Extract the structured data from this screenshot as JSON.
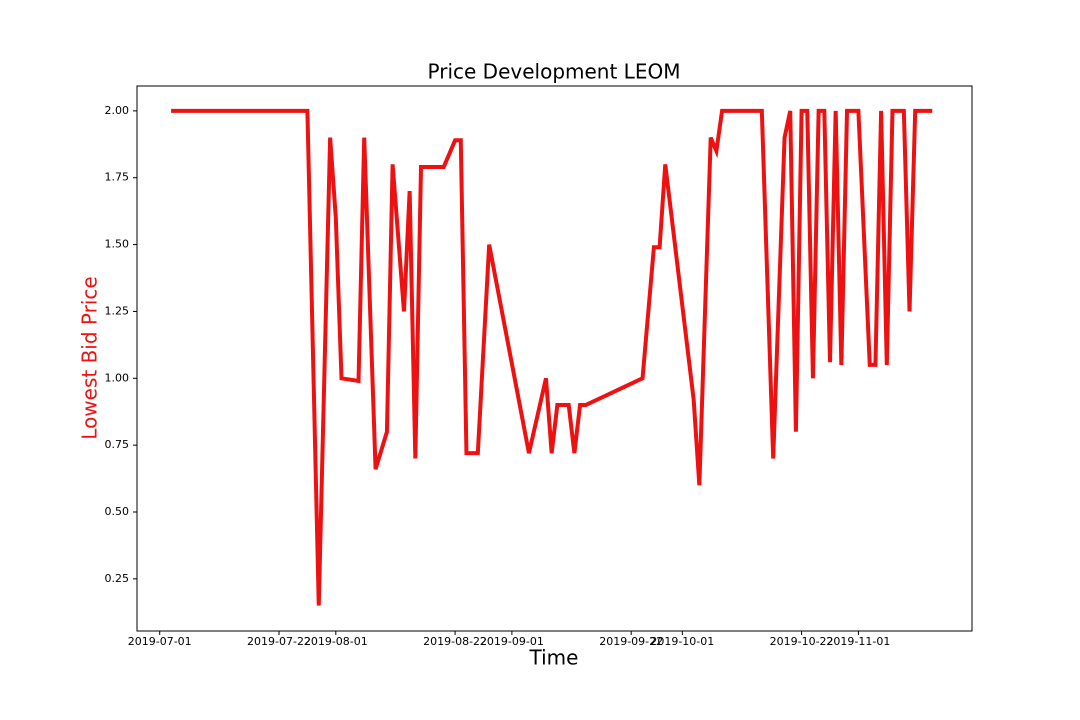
{
  "chart_data": {
    "type": "line",
    "title": "Price Development LEOM",
    "x_label": "Time",
    "y_label": "Lowest Bid Price",
    "x": [
      "2019-07-03",
      "2019-07-27",
      "2019-07-29",
      "2019-07-31",
      "2019-08-01",
      "2019-08-02",
      "2019-08-05",
      "2019-08-06",
      "2019-08-08",
      "2019-08-10",
      "2019-08-11",
      "2019-08-13",
      "2019-08-14",
      "2019-08-15",
      "2019-08-16",
      "2019-08-20",
      "2019-08-22",
      "2019-08-23",
      "2019-08-24",
      "2019-08-26",
      "2019-08-28",
      "2019-09-04",
      "2019-09-07",
      "2019-09-08",
      "2019-09-09",
      "2019-09-11",
      "2019-09-12",
      "2019-09-13",
      "2019-09-14",
      "2019-09-24",
      "2019-09-26",
      "2019-09-27",
      "2019-09-28",
      "2019-10-03",
      "2019-10-04",
      "2019-10-06",
      "2019-10-07",
      "2019-10-08",
      "2019-10-15",
      "2019-10-17",
      "2019-10-19",
      "2019-10-20",
      "2019-10-21",
      "2019-10-22",
      "2019-10-23",
      "2019-10-24",
      "2019-10-25",
      "2019-10-26",
      "2019-10-27",
      "2019-10-28",
      "2019-10-29",
      "2019-10-30",
      "2019-11-01",
      "2019-11-03",
      "2019-11-04",
      "2019-11-05",
      "2019-11-06",
      "2019-11-07",
      "2019-11-09",
      "2019-11-10",
      "2019-11-11",
      "2019-11-14"
    ],
    "series": [
      {
        "name": "Lowest Bid Price",
        "color": "#ee1111",
        "values": [
          2.0,
          2.0,
          0.15,
          1.9,
          1.6,
          1.0,
          0.99,
          1.9,
          0.66,
          0.8,
          1.8,
          1.25,
          1.7,
          0.7,
          1.79,
          1.79,
          1.89,
          1.89,
          0.72,
          0.72,
          1.5,
          0.72,
          1.0,
          0.72,
          0.9,
          0.9,
          0.72,
          0.9,
          0.9,
          1.0,
          1.49,
          1.49,
          1.8,
          0.92,
          0.6,
          1.9,
          1.85,
          2.0,
          2.0,
          0.7,
          1.9,
          2.0,
          0.8,
          2.0,
          2.0,
          1.0,
          2.0,
          2.0,
          1.06,
          2.0,
          1.05,
          2.0,
          2.0,
          1.05,
          1.05,
          2.0,
          1.05,
          2.0,
          2.0,
          1.25,
          2.0,
          2.0
        ]
      }
    ],
    "xlim": [
      "2019-06-27",
      "2019-11-21"
    ],
    "xticks": [
      "2019-07-01",
      "2019-07-22",
      "2019-08-01",
      "2019-08-22",
      "2019-09-01",
      "2019-09-22",
      "2019-10-01",
      "2019-10-22",
      "2019-11-01"
    ],
    "ylim": [
      0.055,
      2.093
    ],
    "yticks": [
      {
        "value": 0.25,
        "label": "0.25"
      },
      {
        "value": 0.5,
        "label": "0.50"
      },
      {
        "value": 0.75,
        "label": "0.75"
      },
      {
        "value": 1,
        "label": "1.00"
      },
      {
        "value": 1.25,
        "label": "1.25"
      },
      {
        "value": 1.5,
        "label": "1.50"
      },
      {
        "value": 1.75,
        "label": "1.75"
      },
      {
        "value": 2,
        "label": "2.00"
      }
    ]
  }
}
